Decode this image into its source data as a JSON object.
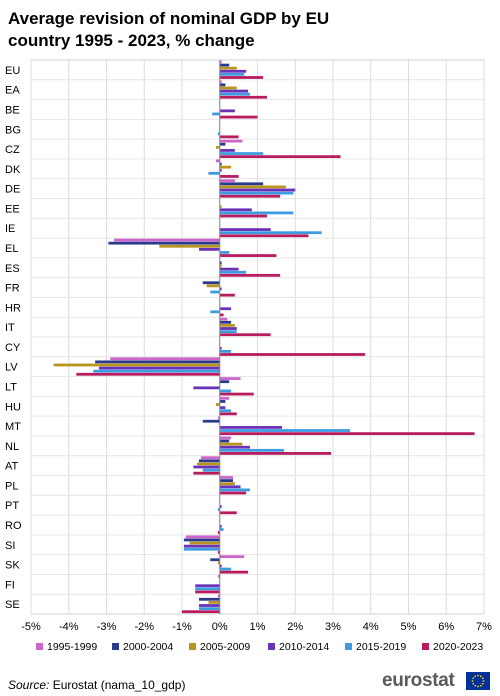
{
  "title_lines": [
    "Average revision of nominal GDP by EU",
    "country 1995 - 2023, % change"
  ],
  "source": {
    "label": "Source:",
    "text": "Eurostat (nama_10_gdp)"
  },
  "brand": {
    "name": "eurostat",
    "flag_color": "#003399",
    "star_color": "#ffcc00"
  },
  "chart_data": {
    "type": "bar",
    "orientation": "horizontal",
    "title": "Average revision of nominal GDP by EU country 1995 - 2023, % change",
    "xlim": [
      -5,
      7
    ],
    "xticks": [
      -5,
      -4,
      -3,
      -2,
      -1,
      0,
      1,
      2,
      3,
      4,
      5,
      6,
      7
    ],
    "tick_format": "%",
    "grid": true,
    "legend_position": "bottom",
    "categories": [
      "EU",
      "EA",
      "BE",
      "BG",
      "CZ",
      "DK",
      "DE",
      "EE",
      "IE",
      "EL",
      "ES",
      "FR",
      "HR",
      "IT",
      "CY",
      "LV",
      "LT",
      "HU",
      "MT",
      "NL",
      "AT",
      "PL",
      "PT",
      "RO",
      "SI",
      "SK",
      "FI",
      "SE"
    ],
    "series": [
      {
        "name": "1995-1999",
        "color": "#cc66cc",
        "values": [
          0.05,
          0.05,
          0,
          0,
          0.6,
          -0.1,
          0.4,
          0,
          0,
          -2.8,
          0,
          0,
          0,
          0.2,
          0,
          -2.9,
          0.55,
          0.25,
          -0.05,
          0.3,
          -0.5,
          0.35,
          0,
          0,
          -0.9,
          0.65,
          -0.05,
          -0.05
        ]
      },
      {
        "name": "2000-2004",
        "color": "#2a3a8c",
        "values": [
          0.25,
          0.15,
          0,
          0,
          0.15,
          0.05,
          1.15,
          0,
          0,
          -2.95,
          0.05,
          -0.45,
          0,
          0.3,
          0,
          -3.3,
          0.25,
          0.15,
          -0.45,
          0.25,
          -0.55,
          0.35,
          0,
          0,
          -0.95,
          -0.25,
          0,
          -0.55
        ]
      },
      {
        "name": "2005-2009",
        "color": "#b8951e",
        "values": [
          0.45,
          0.45,
          0,
          0,
          -0.1,
          0.3,
          1.75,
          0.05,
          0,
          -1.6,
          0.05,
          -0.35,
          0,
          0.4,
          0,
          -4.4,
          0,
          -0.1,
          0,
          0.6,
          -0.6,
          0.4,
          0,
          0,
          -0.8,
          -0.05,
          0,
          -0.3
        ]
      },
      {
        "name": "2010-2014",
        "color": "#6a32b8",
        "values": [
          0.7,
          0.75,
          0.4,
          0,
          0.4,
          0.05,
          2.0,
          0.85,
          1.35,
          -0.55,
          0.5,
          0.05,
          0.3,
          0.45,
          0.05,
          -3.2,
          -0.7,
          0.15,
          1.65,
          0.8,
          -0.7,
          0.55,
          0.05,
          0.05,
          -0.95,
          0.05,
          -0.65,
          -0.55
        ]
      },
      {
        "name": "2015-2019",
        "color": "#3f9be0",
        "values": [
          0.65,
          0.8,
          -0.2,
          -0.05,
          1.15,
          -0.3,
          1.95,
          1.95,
          2.7,
          0.25,
          0.7,
          -0.25,
          -0.25,
          0.45,
          0.3,
          -3.35,
          0.3,
          0.3,
          3.45,
          1.7,
          -0.45,
          0.8,
          -0.05,
          0.1,
          -0.95,
          0.3,
          -0.65,
          -0.55
        ]
      },
      {
        "name": "2020-2023",
        "color": "#b81c5e",
        "values": [
          1.15,
          1.25,
          1.0,
          0.5,
          3.2,
          0.5,
          1.6,
          1.25,
          2.35,
          1.5,
          1.6,
          0.4,
          0.1,
          1.35,
          3.85,
          -3.8,
          0.9,
          0.45,
          6.75,
          2.95,
          -0.7,
          0.7,
          0.45,
          -0.05,
          -0.05,
          0.75,
          -0.65,
          -1.0
        ]
      }
    ]
  }
}
